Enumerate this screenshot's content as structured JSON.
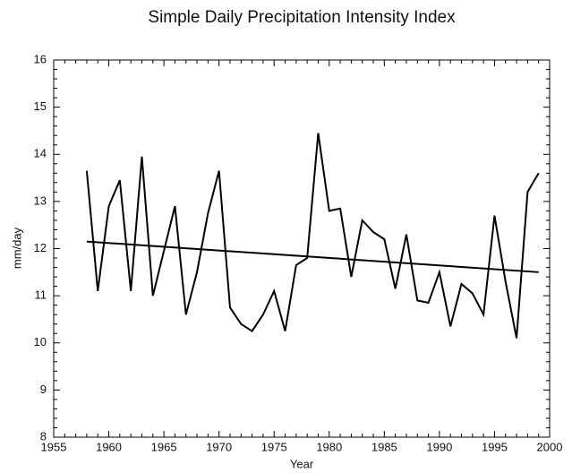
{
  "chart_data": {
    "type": "line",
    "title": "Simple Daily Precipitation Intensity Index",
    "x_label": "Year",
    "y_label": "mm/day",
    "x": [
      1958,
      1959,
      1960,
      1961,
      1962,
      1963,
      1964,
      1965,
      1966,
      1967,
      1968,
      1969,
      1970,
      1971,
      1972,
      1973,
      1974,
      1975,
      1976,
      1977,
      1978,
      1979,
      1980,
      1981,
      1982,
      1983,
      1984,
      1985,
      1986,
      1987,
      1988,
      1989,
      1990,
      1991,
      1992,
      1993,
      1994,
      1995,
      1996,
      1997,
      1998,
      1999
    ],
    "values": [
      13.65,
      11.1,
      12.9,
      13.45,
      11.1,
      13.95,
      11.0,
      11.95,
      12.9,
      10.6,
      11.5,
      12.75,
      13.65,
      10.75,
      10.4,
      10.25,
      10.6,
      11.1,
      10.25,
      11.65,
      11.8,
      14.45,
      12.8,
      12.85,
      11.4,
      12.6,
      12.35,
      12.2,
      11.15,
      12.3,
      10.9,
      10.85,
      11.5,
      10.35,
      11.25,
      11.05,
      10.6,
      12.7,
      11.3,
      10.1,
      13.2,
      13.6
    ],
    "color": "#000000",
    "trend": {
      "x": [
        1958,
        1999
      ],
      "values": [
        12.15,
        11.5
      ]
    },
    "xlim": [
      1955,
      2000
    ],
    "xticks": [
      1955,
      1960,
      1965,
      1970,
      1975,
      1980,
      1985,
      1990,
      1995,
      2000
    ],
    "ylim": [
      8,
      16
    ],
    "yticks": [
      8,
      9,
      10,
      11,
      12,
      13,
      14,
      15,
      16
    ],
    "grid": false
  }
}
